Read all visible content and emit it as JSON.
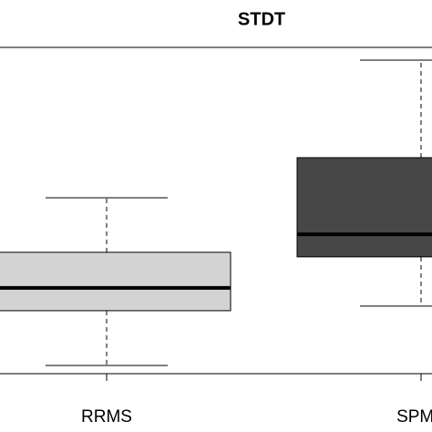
{
  "chart_data": {
    "type": "box",
    "title": "STDT",
    "categories": [
      "RRMS",
      "SPMS"
    ],
    "colors": [
      "#d3d3d3",
      "#474747"
    ],
    "boxes": [
      {
        "min": 2.5,
        "q1": 19.3,
        "median": 26.3,
        "q3": 37.2,
        "max": 53.9
      },
      {
        "min": 20.7,
        "q1": 35.8,
        "median": 42.7,
        "q3": 66.2,
        "max": 96.1
      }
    ],
    "ylim": [
      0,
      100
    ]
  }
}
